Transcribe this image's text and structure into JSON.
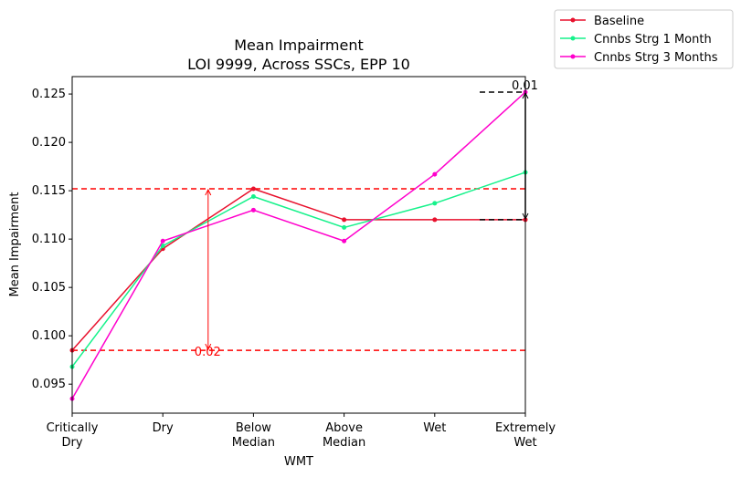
{
  "chart_data": {
    "type": "line",
    "title": "Mean Impairment",
    "subtitle": "LOI 9999, Across SSCs, EPP 10",
    "xlabel": "WMT",
    "ylabel": "Mean Impairment",
    "categories": [
      [
        "Critically",
        "Dry"
      ],
      [
        "Dry"
      ],
      [
        "Below",
        "Median"
      ],
      [
        "Above",
        "Median"
      ],
      [
        "Wet"
      ],
      [
        "Extremely",
        "Wet"
      ]
    ],
    "ylim": [
      0.092,
      0.1268
    ],
    "yticks": [
      0.095,
      0.1,
      0.105,
      0.11,
      0.115,
      0.12,
      0.125
    ],
    "ytick_labels": [
      "0.095",
      "0.100",
      "0.105",
      "0.110",
      "0.115",
      "0.120",
      "0.125"
    ],
    "grid": false,
    "legend_position": "outside-top-right",
    "series": [
      {
        "name": "Baseline",
        "color": "#e8112d",
        "values": [
          0.0985,
          0.109,
          0.1152,
          0.112,
          0.112,
          0.112
        ]
      },
      {
        "name": "Cnnbs Strg 1 Month",
        "color": "#16f28b",
        "values": [
          0.0968,
          0.1093,
          0.1144,
          0.1112,
          0.1137,
          0.1169
        ]
      },
      {
        "name": "Cnnbs Strg 3 Months",
        "color": "#ff00cc",
        "values": [
          0.0935,
          0.1098,
          0.113,
          0.1098,
          0.1167,
          0.1252
        ]
      }
    ],
    "annotations": [
      {
        "label": "0.02",
        "color": "#ff0000",
        "kind": "range",
        "x_position": 1.5,
        "y_low": 0.0985,
        "y_high": 0.1152
      },
      {
        "label": "0.01",
        "color": "#000000",
        "kind": "range",
        "x_position": 5,
        "y_low": 0.112,
        "y_high": 0.1252
      }
    ],
    "reference_lines": [
      {
        "y": 0.1152,
        "color": "#ff0000",
        "style": "dashed"
      },
      {
        "y": 0.0985,
        "color": "#ff0000",
        "style": "dashed"
      }
    ]
  }
}
